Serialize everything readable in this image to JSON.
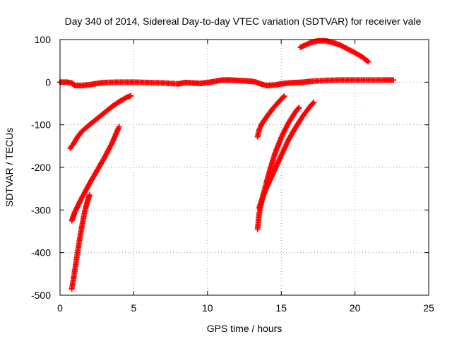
{
  "chart_data": {
    "type": "scatter",
    "title": "Day 340 of 2014, Sidereal Day-to-day VTEC variation (SDTVAR) for receiver vale",
    "xlabel": "GPS time / hours",
    "ylabel": "SDTVAR / TECUs",
    "xlim": [
      0,
      25
    ],
    "ylim": [
      -500,
      100
    ],
    "xticks": [
      0,
      5,
      10,
      15,
      20,
      25
    ],
    "yticks": [
      -500,
      -400,
      -300,
      -200,
      -100,
      0,
      100
    ],
    "grid": true,
    "grid_style": "dotted",
    "marker": "plus",
    "color": "#ff0000",
    "series": [
      {
        "points": [
          [
            0,
            0
          ],
          [
            0.5,
            0
          ],
          [
            0.6,
            -1
          ],
          [
            0.8,
            -2
          ],
          [
            1,
            -8
          ],
          [
            1.5,
            -8
          ],
          [
            2,
            -6
          ],
          [
            2.5,
            -3
          ],
          [
            3,
            -1
          ],
          [
            4,
            0
          ],
          [
            5,
            0
          ],
          [
            6,
            -1
          ],
          [
            7,
            -2
          ],
          [
            8,
            -4
          ],
          [
            8.5,
            -1
          ],
          [
            9,
            -2
          ],
          [
            9.5,
            -3
          ],
          [
            10,
            -1
          ],
          [
            10.5,
            2
          ],
          [
            11,
            5
          ],
          [
            11.5,
            5
          ],
          [
            12,
            4
          ],
          [
            12.5,
            3
          ],
          [
            13,
            2
          ],
          [
            13.3,
            0
          ],
          [
            13.6,
            -4
          ],
          [
            14,
            -8
          ],
          [
            14.5,
            -7
          ],
          [
            15,
            -4
          ],
          [
            15.5,
            -2
          ],
          [
            16,
            -1
          ],
          [
            16.5,
            0
          ],
          [
            17,
            2
          ],
          [
            18,
            4
          ],
          [
            19,
            5
          ],
          [
            20,
            5
          ],
          [
            21,
            5
          ],
          [
            22,
            5
          ],
          [
            22.6,
            5
          ]
        ]
      },
      {
        "points": [
          [
            0.7,
            -155
          ],
          [
            0.9,
            -145
          ],
          [
            1.2,
            -128
          ],
          [
            1.5,
            -115
          ],
          [
            2,
            -100
          ],
          [
            2.5,
            -86
          ],
          [
            3,
            -72
          ],
          [
            3.5,
            -58
          ],
          [
            4,
            -46
          ],
          [
            4.5,
            -36
          ],
          [
            4.8,
            -32
          ]
        ]
      },
      {
        "points": [
          [
            0.8,
            -325
          ],
          [
            1,
            -305
          ],
          [
            1.5,
            -270
          ],
          [
            2,
            -238
          ],
          [
            2.5,
            -208
          ],
          [
            3,
            -178
          ],
          [
            3.5,
            -145
          ],
          [
            4,
            -105
          ]
        ]
      },
      {
        "points": [
          [
            0.8,
            -485
          ],
          [
            0.9,
            -465
          ],
          [
            1.1,
            -420
          ],
          [
            1.3,
            -375
          ],
          [
            1.5,
            -335
          ],
          [
            1.7,
            -300
          ],
          [
            1.9,
            -275
          ],
          [
            2,
            -265
          ]
        ]
      },
      {
        "points": [
          [
            13.4,
            -128
          ],
          [
            13.5,
            -112
          ],
          [
            13.7,
            -97
          ],
          [
            14,
            -82
          ],
          [
            14.3,
            -68
          ],
          [
            14.6,
            -55
          ],
          [
            15,
            -40
          ],
          [
            15.2,
            -33
          ]
        ]
      },
      {
        "points": [
          [
            13.4,
            -345
          ],
          [
            13.5,
            -310
          ],
          [
            13.7,
            -275
          ],
          [
            14,
            -235
          ],
          [
            14.3,
            -198
          ],
          [
            14.6,
            -165
          ],
          [
            15,
            -130
          ],
          [
            15.5,
            -95
          ],
          [
            16,
            -68
          ],
          [
            16.2,
            -60
          ]
        ]
      },
      {
        "points": [
          [
            13.5,
            -295
          ],
          [
            13.8,
            -265
          ],
          [
            14,
            -248
          ],
          [
            14.5,
            -210
          ],
          [
            15,
            -172
          ],
          [
            15.5,
            -135
          ],
          [
            16,
            -105
          ],
          [
            16.5,
            -78
          ],
          [
            17,
            -55
          ],
          [
            17.2,
            -48
          ]
        ]
      },
      {
        "points": [
          [
            16.3,
            82
          ],
          [
            16.7,
            88
          ],
          [
            17,
            93
          ],
          [
            17.5,
            97
          ],
          [
            18,
            97
          ],
          [
            18.5,
            93
          ],
          [
            19,
            87
          ],
          [
            19.5,
            78
          ],
          [
            20,
            69
          ],
          [
            20.5,
            59
          ],
          [
            20.9,
            48
          ]
        ]
      }
    ]
  }
}
